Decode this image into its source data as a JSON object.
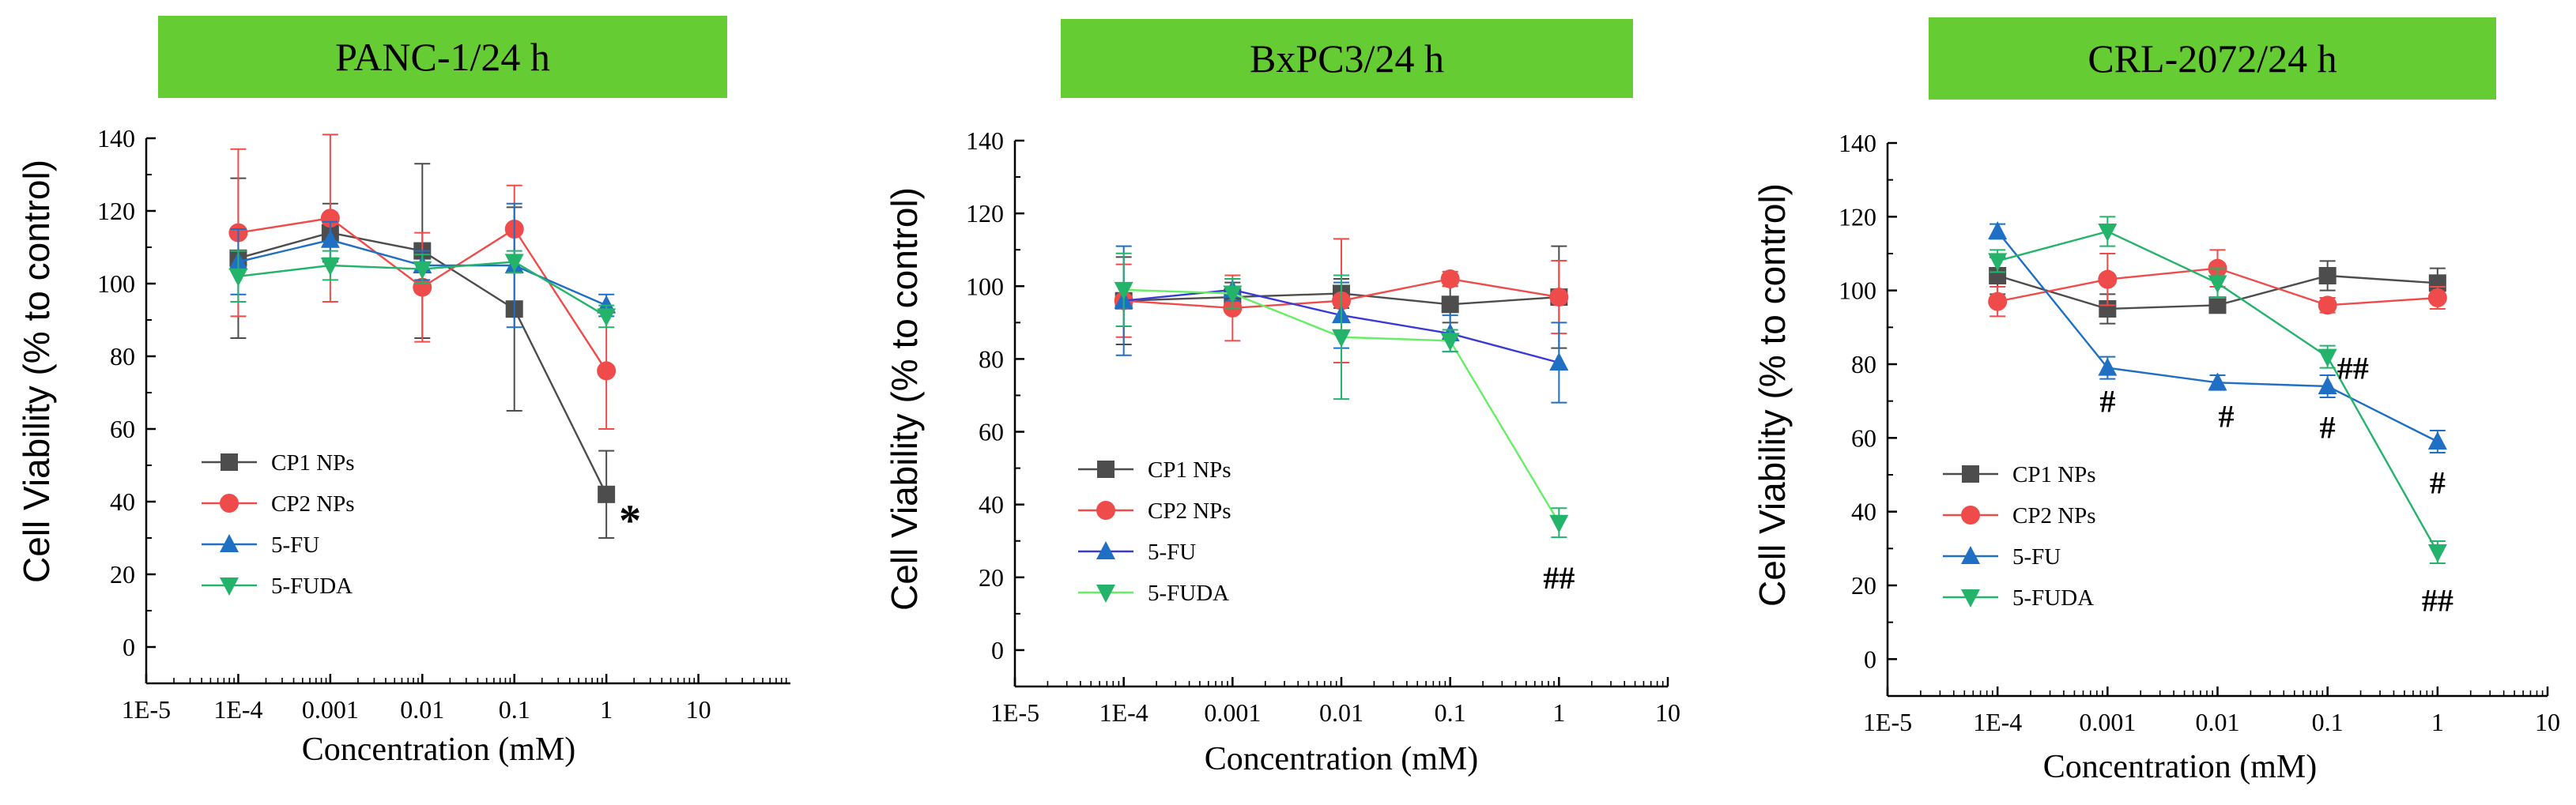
{
  "colors": {
    "title_bg": "#66cc33",
    "cp1": "#4d4d4d",
    "cp2": "#f04b4b",
    "fu": "#1f6fc5",
    "fuda": "#24b36b",
    "fu_bxpc3_line": "#3a3ad6",
    "fuda_bxpc3_line": "#66ee66"
  },
  "chart_data": [
    {
      "type": "line",
      "title": "PANC-1/24 h",
      "xlabel": "Concentration (mM)",
      "ylabel": "Cell Viability (% to control)",
      "xscale": "log",
      "xlim": [
        1e-05,
        100
      ],
      "ylim": [
        -10,
        140
      ],
      "x_tick_labels": [
        "1E-5",
        "1E-4",
        "0.001",
        "0.01",
        "0.1",
        "1",
        "10"
      ],
      "y_tick_labels": [
        "0",
        "20",
        "40",
        "60",
        "80",
        "100",
        "120",
        "140"
      ],
      "x": [
        0.0001,
        0.001,
        0.01,
        0.1,
        1
      ],
      "legend_position": "lower-left",
      "series": [
        {
          "name": "CP1 NPs",
          "marker": "square",
          "values": [
            107,
            114,
            109,
            93,
            42
          ],
          "errors": [
            22,
            8,
            24,
            28,
            12
          ]
        },
        {
          "name": "CP2 NPs",
          "marker": "circle",
          "values": [
            114,
            118,
            99,
            115,
            76
          ],
          "errors": [
            23,
            23,
            15,
            12,
            16
          ]
        },
        {
          "name": "5-FU",
          "marker": "triangle-up",
          "values": [
            106,
            112,
            105,
            105,
            94
          ],
          "errors": [
            9,
            5,
            4,
            17,
            3
          ]
        },
        {
          "name": "5-FUDA",
          "marker": "triangle-down",
          "values": [
            102,
            105,
            104,
            106,
            91
          ],
          "errors": [
            7,
            4,
            4,
            3,
            3
          ]
        }
      ],
      "annotations": [
        {
          "text": "*",
          "x": 1,
          "y": 36
        }
      ]
    },
    {
      "type": "line",
      "title": "BxPC3/24 h",
      "xlabel": "Concentration (mM)",
      "ylabel": "Cell Viability (% to control)",
      "xscale": "log",
      "xlim": [
        1e-05,
        10
      ],
      "ylim": [
        -10,
        140
      ],
      "x_tick_labels": [
        "1E-5",
        "1E-4",
        "0.001",
        "0.01",
        "0.1",
        "1",
        "10"
      ],
      "y_tick_labels": [
        "0",
        "20",
        "40",
        "60",
        "80",
        "100",
        "120",
        "140"
      ],
      "x": [
        0.0001,
        0.001,
        0.01,
        0.1,
        1
      ],
      "legend_position": "lower-left",
      "series": [
        {
          "name": "CP1 NPs",
          "marker": "square",
          "values": [
            96,
            97,
            98,
            95,
            97
          ],
          "errors": [
            12,
            4,
            4,
            5,
            14
          ]
        },
        {
          "name": "CP2 NPs",
          "marker": "circle",
          "values": [
            96,
            94,
            96,
            102,
            97
          ],
          "errors": [
            10,
            9,
            17,
            2,
            10
          ]
        },
        {
          "name": "5-FU",
          "marker": "triangle-up",
          "values": [
            96,
            99,
            92,
            87,
            79
          ],
          "errors": [
            15,
            3,
            9,
            5,
            11
          ]
        },
        {
          "name": "5-FUDA",
          "marker": "triangle-down",
          "values": [
            99,
            98,
            86,
            85,
            35
          ],
          "errors": [
            10,
            4,
            17,
            3,
            4
          ]
        }
      ],
      "annotations": [
        {
          "text": "##",
          "x": 1,
          "y": 20
        }
      ]
    },
    {
      "type": "line",
      "title": "CRL-2072/24 h",
      "xlabel": "Concentration (mM)",
      "ylabel": "Cell Viability (% to control)",
      "xscale": "log",
      "xlim": [
        1e-05,
        10
      ],
      "ylim": [
        -10,
        140
      ],
      "x_tick_labels": [
        "1E-5",
        "1E-4",
        "0.001",
        "0.01",
        "0.1",
        "1",
        "10"
      ],
      "y_tick_labels": [
        "0",
        "20",
        "40",
        "60",
        "80",
        "100",
        "120",
        "140"
      ],
      "x": [
        0.0001,
        0.001,
        0.01,
        0.1,
        1
      ],
      "legend_position": "lower-left",
      "series": [
        {
          "name": "CP1 NPs",
          "marker": "square",
          "values": [
            104,
            95,
            96,
            104,
            102
          ],
          "errors": [
            5,
            4,
            2,
            4,
            4
          ]
        },
        {
          "name": "CP2 NPs",
          "marker": "circle",
          "values": [
            97,
            103,
            106,
            96,
            98
          ],
          "errors": [
            4,
            7,
            5,
            2,
            3
          ]
        },
        {
          "name": "5-FU",
          "marker": "triangle-up",
          "values": [
            116,
            79,
            75,
            74,
            59
          ],
          "errors": [
            2,
            3,
            2,
            3,
            3
          ]
        },
        {
          "name": "5-FUDA",
          "marker": "triangle-down",
          "values": [
            108,
            116,
            102,
            82,
            29
          ],
          "errors": [
            3,
            4,
            4,
            3,
            3
          ]
        }
      ],
      "annotations": [
        {
          "text": "#",
          "x": 0.001,
          "y": 70
        },
        {
          "text": "#",
          "x": 0.012,
          "y": 66
        },
        {
          "text": "#",
          "x": 0.1,
          "y": 63
        },
        {
          "text": "##",
          "x": 0.17,
          "y": 79
        },
        {
          "text": "#",
          "x": 1,
          "y": 48
        },
        {
          "text": "##",
          "x": 1,
          "y": 16
        }
      ]
    }
  ]
}
